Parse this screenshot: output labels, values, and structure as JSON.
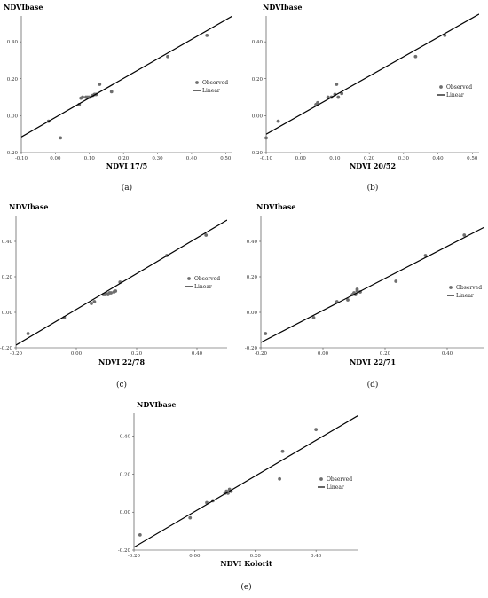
{
  "chart_data": [
    {
      "type": "scatter",
      "panel": "(a)",
      "title": "",
      "ylabel": "NDVIbase",
      "xlabel": "NDVI 17/5",
      "xticks": [
        "-0.10",
        "0.00",
        "0.10",
        "0.20",
        "0.30",
        "0.40",
        "0.50"
      ],
      "yticks": [
        "-0.20",
        "0.00",
        "0.20",
        "0.40"
      ],
      "xlim": [
        -0.1,
        0.52
      ],
      "ylim": [
        -0.2,
        0.54
      ],
      "legend": [
        "Observed",
        "Linear"
      ],
      "legend_position": "right",
      "series": [
        {
          "name": "Observed",
          "type": "scatter",
          "x": [
            -0.02,
            0.015,
            0.07,
            0.075,
            0.08,
            0.09,
            0.095,
            0.1,
            0.11,
            0.115,
            0.12,
            0.13,
            0.165,
            0.33,
            0.445
          ],
          "y": [
            -0.03,
            -0.12,
            0.06,
            0.095,
            0.1,
            0.1,
            0.1,
            0.1,
            0.11,
            0.115,
            0.115,
            0.17,
            0.13,
            0.32,
            0.435
          ]
        },
        {
          "name": "Linear",
          "type": "line",
          "x": [
            -0.1,
            0.52
          ],
          "y": [
            -0.115,
            0.54
          ]
        }
      ]
    },
    {
      "type": "scatter",
      "panel": "(b)",
      "title": "",
      "ylabel": "NDVIbase",
      "xlabel": "NDVI 20/52",
      "xticks": [
        "-0.10",
        "0.00",
        "0.10",
        "0.20",
        "0.30",
        "0.40",
        "0.50"
      ],
      "yticks": [
        "-0.20",
        "0.00",
        "0.20",
        "0.40"
      ],
      "xlim": [
        -0.1,
        0.52
      ],
      "ylim": [
        -0.2,
        0.54
      ],
      "legend": [
        "Observed",
        "Linear"
      ],
      "legend_position": "right",
      "series": [
        {
          "name": "Observed",
          "type": "scatter",
          "x": [
            -0.1,
            -0.065,
            0.045,
            0.05,
            0.08,
            0.09,
            0.1,
            0.105,
            0.11,
            0.12,
            0.335,
            0.42
          ],
          "y": [
            -0.12,
            -0.03,
            0.06,
            0.07,
            0.1,
            0.1,
            0.115,
            0.17,
            0.1,
            0.12,
            0.32,
            0.435
          ]
        },
        {
          "name": "Linear",
          "type": "line",
          "x": [
            -0.1,
            0.52
          ],
          "y": [
            -0.1,
            0.55
          ]
        }
      ]
    },
    {
      "type": "scatter",
      "panel": "(c)",
      "title": "",
      "ylabel": "NDVIbase",
      "xlabel": "NDVI 22/78",
      "xticks": [
        "-0.20",
        "0.00",
        "0.20",
        "0.40"
      ],
      "yticks": [
        "-0.20",
        "0.00",
        "0.20",
        "0.40"
      ],
      "xlim": [
        -0.2,
        0.5
      ],
      "ylim": [
        -0.2,
        0.54
      ],
      "legend": [
        "Observed",
        "Linear"
      ],
      "legend_position": "right",
      "series": [
        {
          "name": "Observed",
          "type": "scatter",
          "x": [
            -0.16,
            -0.04,
            0.05,
            0.06,
            0.09,
            0.095,
            0.1,
            0.105,
            0.11,
            0.115,
            0.125,
            0.13,
            0.145,
            0.3,
            0.43
          ],
          "y": [
            -0.12,
            -0.03,
            0.05,
            0.06,
            0.1,
            0.1,
            0.105,
            0.1,
            0.11,
            0.11,
            0.115,
            0.12,
            0.17,
            0.32,
            0.435
          ]
        },
        {
          "name": "Linear",
          "type": "line",
          "x": [
            -0.2,
            0.5
          ],
          "y": [
            -0.185,
            0.52
          ]
        }
      ]
    },
    {
      "type": "scatter",
      "panel": "(d)",
      "title": "",
      "ylabel": "NDVIbase",
      "xlabel": "NDVI 22/71",
      "xticks": [
        "-0.20",
        "0.00",
        "0.20",
        "0.40"
      ],
      "yticks": [
        "-0.20",
        "0.00",
        "0.20",
        "0.40"
      ],
      "xlim": [
        -0.2,
        0.52
      ],
      "ylim": [
        -0.2,
        0.54
      ],
      "legend": [
        "Observed",
        "Linear"
      ],
      "legend_position": "right",
      "series": [
        {
          "name": "Observed",
          "type": "scatter",
          "x": [
            -0.185,
            -0.03,
            0.045,
            0.08,
            0.095,
            0.1,
            0.105,
            0.11,
            0.11,
            0.12,
            0.235,
            0.33,
            0.455
          ],
          "y": [
            -0.12,
            -0.03,
            0.06,
            0.07,
            0.1,
            0.11,
            0.1,
            0.12,
            0.13,
            0.115,
            0.175,
            0.32,
            0.435
          ]
        },
        {
          "name": "Linear",
          "type": "line",
          "x": [
            -0.2,
            0.52
          ],
          "y": [
            -0.17,
            0.48
          ]
        }
      ]
    },
    {
      "type": "scatter",
      "panel": "(e)",
      "title": "",
      "ylabel": "NDVIbase",
      "xlabel": "NDVI Kolorit",
      "xticks": [
        "-0.20",
        "0.00",
        "0.20",
        "0.40"
      ],
      "yticks": [
        "-0.20",
        "0.00",
        "0.20",
        "0.40"
      ],
      "xlim": [
        -0.2,
        0.54
      ],
      "ylim": [
        -0.2,
        0.52
      ],
      "legend": [
        "Observed",
        "Linear"
      ],
      "legend_position": "right",
      "series": [
        {
          "name": "Observed",
          "type": "scatter",
          "x": [
            -0.18,
            -0.015,
            0.04,
            0.06,
            0.1,
            0.105,
            0.11,
            0.115,
            0.12,
            0.28,
            0.29,
            0.4
          ],
          "y": [
            -0.12,
            -0.03,
            0.05,
            0.06,
            0.1,
            0.11,
            0.1,
            0.12,
            0.11,
            0.175,
            0.32,
            0.435
          ]
        },
        {
          "name": "Linear",
          "type": "line",
          "x": [
            -0.2,
            0.54
          ],
          "y": [
            -0.185,
            0.51
          ]
        }
      ]
    }
  ],
  "colors": {
    "marker": "#6e6e6e",
    "line": "#000000",
    "axis": "#333333"
  }
}
